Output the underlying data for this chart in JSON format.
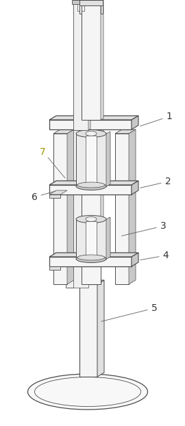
{
  "bg_color": "#ffffff",
  "lc": "#4a4a4a",
  "lw": 0.8,
  "label_7_color": "#999900",
  "fs": 10,
  "cf": "#f5f5f5",
  "cm": "#e0e0e0",
  "cd": "#c8c8c8",
  "cw": "#fafafa"
}
